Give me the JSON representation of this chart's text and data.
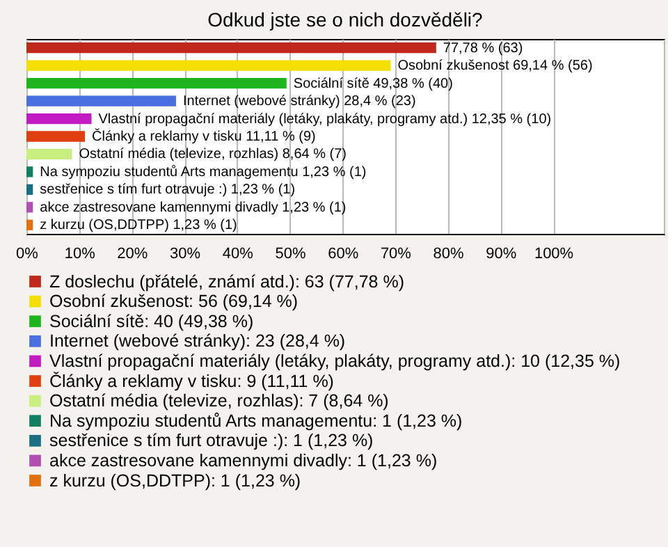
{
  "chart_data": {
    "type": "bar",
    "orientation": "horizontal",
    "title": "Odkud jste se o nich dozvěděli?",
    "categories": [
      null,
      null,
      null,
      null,
      null,
      null,
      null,
      null,
      null,
      null,
      null
    ],
    "series": [
      {
        "name": "Z doslechu (přátelé, známí atd.): 63 (77,78 %)",
        "color": "#c0281c",
        "values": [
          77.78,
          null,
          null,
          null,
          null,
          null,
          null,
          null,
          null,
          null,
          null
        ],
        "value_labels": [
          "77,78 % (63)",
          null,
          null,
          null,
          null,
          null,
          null,
          null,
          null,
          null,
          null
        ]
      },
      {
        "name": "Osobní zkušenost: 56 (69,14 %)",
        "color": "#f4e000",
        "values": [
          null,
          69.14,
          null,
          null,
          null,
          null,
          null,
          null,
          null,
          null,
          null
        ],
        "value_labels": [
          null,
          "Osobní zkušenost 69,14 % (56)",
          null,
          null,
          null,
          null,
          null,
          null,
          null,
          null,
          null
        ]
      },
      {
        "name": "Sociální sítě: 40 (49,38 %)",
        "color": "#1fb51f",
        "values": [
          null,
          null,
          49.38,
          null,
          null,
          null,
          null,
          null,
          null,
          null,
          null
        ],
        "value_labels": [
          null,
          null,
          "Sociální sítě 49,38 % (40)",
          null,
          null,
          null,
          null,
          null,
          null,
          null,
          null
        ]
      },
      {
        "name": "Internet (webové stránky): 23 (28,4 %)",
        "color": "#4a6fe0",
        "values": [
          null,
          null,
          null,
          28.4,
          null,
          null,
          null,
          null,
          null,
          null,
          null
        ],
        "value_labels": [
          null,
          null,
          null,
          "Internet (webové stránky) 28,4 % (23)",
          null,
          null,
          null,
          null,
          null,
          null,
          null
        ]
      },
      {
        "name": "Vlastní propagační materiály (letáky, plakáty, programy atd.): 10 (12,35 %)",
        "color": "#c21bc2",
        "values": [
          null,
          null,
          null,
          null,
          12.35,
          null,
          null,
          null,
          null,
          null,
          null
        ],
        "value_labels": [
          null,
          null,
          null,
          null,
          "Vlastní propagační materiály (letáky, plakáty, programy atd.) 12,35 % (10)",
          null,
          null,
          null,
          null,
          null,
          null
        ]
      },
      {
        "name": "Články a reklamy v tisku: 9 (11,11 %)",
        "color": "#e04010",
        "values": [
          null,
          null,
          null,
          null,
          null,
          11.11,
          null,
          null,
          null,
          null,
          null
        ],
        "value_labels": [
          null,
          null,
          null,
          null,
          null,
          "Články a reklamy v tisku 11,11 % (9)",
          null,
          null,
          null,
          null,
          null
        ]
      },
      {
        "name": "Ostatní média (televize, rozhlas): 7 (8,64 %)",
        "color": "#c8f080",
        "values": [
          null,
          null,
          null,
          null,
          null,
          null,
          8.64,
          null,
          null,
          null,
          null
        ],
        "value_labels": [
          null,
          null,
          null,
          null,
          null,
          null,
          "Ostatní média (televize, rozhlas) 8,64 % (7)",
          null,
          null,
          null,
          null
        ]
      },
      {
        "name": "Na sympoziu studentů Arts managementu: 1 (1,23 %)",
        "color": "#108060",
        "values": [
          null,
          null,
          null,
          null,
          null,
          null,
          null,
          1.23,
          null,
          null,
          null
        ],
        "value_labels": [
          null,
          null,
          null,
          null,
          null,
          null,
          null,
          "Na sympoziu studentů Arts managementu 1,23 % (1)",
          null,
          null,
          null
        ]
      },
      {
        "name": "sestřenice s tím furt otravuje :): 1 (1,23 %)",
        "color": "#1a7080",
        "values": [
          null,
          null,
          null,
          null,
          null,
          null,
          null,
          null,
          1.23,
          null,
          null
        ],
        "value_labels": [
          null,
          null,
          null,
          null,
          null,
          null,
          null,
          null,
          "sestřenice s tím furt otravuje :) 1,23 % (1)",
          null,
          null
        ]
      },
      {
        "name": "akce zastresovane kamennymi divadly: 1 (1,23 %)",
        "color": "#b050b0",
        "values": [
          null,
          null,
          null,
          null,
          null,
          null,
          null,
          null,
          null,
          1.23,
          null
        ],
        "value_labels": [
          null,
          null,
          null,
          null,
          null,
          null,
          null,
          null,
          null,
          "akce zastresovane kamennymi divadly 1,23 % (1)",
          null
        ]
      },
      {
        "name": "z kurzu (OS,DDTPP): 1 (1,23 %)",
        "color": "#e07010",
        "values": [
          null,
          null,
          null,
          null,
          null,
          null,
          null,
          null,
          null,
          null,
          1.23
        ],
        "value_labels": [
          null,
          null,
          null,
          null,
          null,
          null,
          null,
          null,
          null,
          null,
          "z kurzu (OS,DDTPP) 1,23 % (1)"
        ]
      }
    ],
    "xlim": [
      0,
      121
    ],
    "xticks": [
      {
        "value": 0,
        "label": "0%"
      },
      {
        "value": 10,
        "label": "10%"
      },
      {
        "value": 20,
        "label": "20%"
      },
      {
        "value": 30,
        "label": "30%"
      },
      {
        "value": 40,
        "label": "40%"
      },
      {
        "value": 50,
        "label": "50%"
      },
      {
        "value": 60,
        "label": "60%"
      },
      {
        "value": 70,
        "label": "70%"
      },
      {
        "value": 80,
        "label": "80%"
      },
      {
        "value": 90,
        "label": "90%"
      },
      {
        "value": 100,
        "label": "100%"
      },
      {
        "value": 121,
        "label": null
      }
    ],
    "grid": "x",
    "legend": "bottom"
  }
}
